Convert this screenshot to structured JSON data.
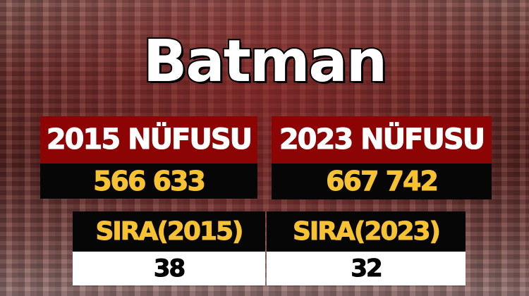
{
  "title": "Batman",
  "colors": {
    "header_red": "#8c0404",
    "value_yellow": "#f6c233",
    "black": "#060606",
    "white": "#ffffff"
  },
  "population": [
    {
      "label": "2015 NÜFUSU",
      "value": "566 633"
    },
    {
      "label": "2023 NÜFUSU",
      "value": "667 742"
    }
  ],
  "rank": [
    {
      "label": "SIRA(2015)",
      "value": "38"
    },
    {
      "label": "SIRA(2023)",
      "value": "32"
    }
  ]
}
